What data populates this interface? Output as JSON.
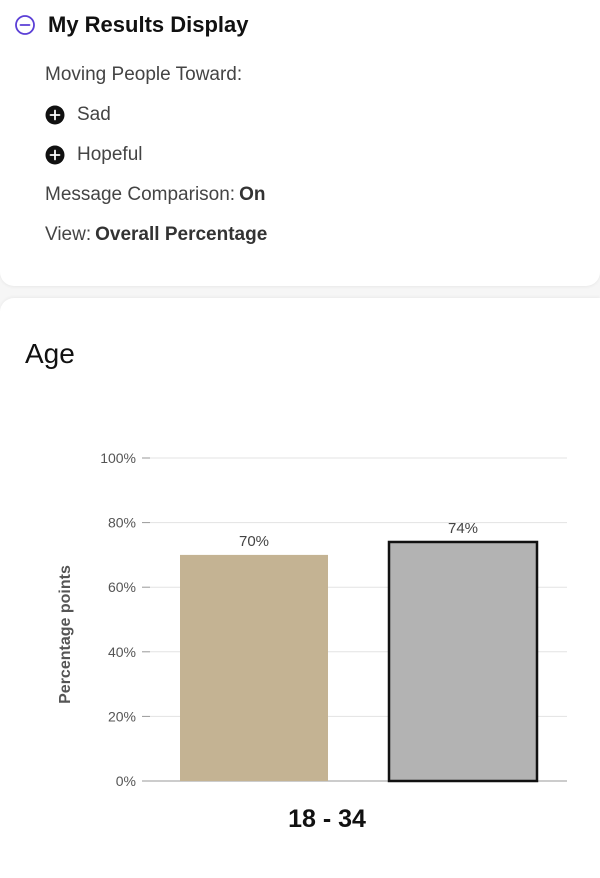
{
  "summary": {
    "title": "My Results Display",
    "moving_label": "Moving People Toward:",
    "emotions": [
      "Sad",
      "Hopeful"
    ],
    "comparison_label": "Message Comparison:",
    "comparison_value": "On",
    "view_label": "View:",
    "view_value": "Overall Percentage"
  },
  "colors": {
    "accent": "#5b3fd6",
    "bar1": "#c4b393",
    "bar2": "#b3b3b3"
  },
  "icons": {
    "toggle": "minus-circle-icon",
    "emotion": "plus-circle-icon"
  },
  "chart_data": {
    "type": "bar",
    "title": "Age",
    "ylabel": "Percentage points",
    "ylim": [
      0,
      100
    ],
    "yticks": [
      0,
      20,
      40,
      60,
      80,
      100
    ],
    "ytick_labels": [
      "0%",
      "20%",
      "40%",
      "60%",
      "80%",
      "100%"
    ],
    "categories": [
      "18 - 34"
    ],
    "bars": [
      {
        "value": 70,
        "label": "70%"
      },
      {
        "value": 74,
        "label": "74%"
      }
    ],
    "grid": true
  }
}
